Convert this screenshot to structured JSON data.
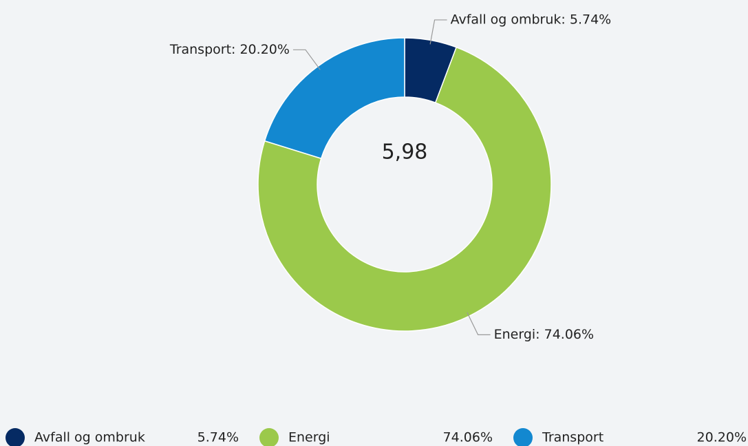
{
  "chart_data": {
    "type": "donut",
    "categories": [
      "Avfall og ombruk",
      "Energi",
      "Transport"
    ],
    "values": [
      5.74,
      74.06,
      20.2
    ],
    "value_labels": [
      "5.74%",
      "74.06%",
      "20.20%"
    ],
    "callout_labels": [
      "Avfall og ombruk: 5.74%",
      "Energi: 74.06%",
      "Transport: 20.20%"
    ],
    "colors": [
      "#052a63",
      "#9bc94b",
      "#1388d0"
    ],
    "center_label": "5,98"
  }
}
